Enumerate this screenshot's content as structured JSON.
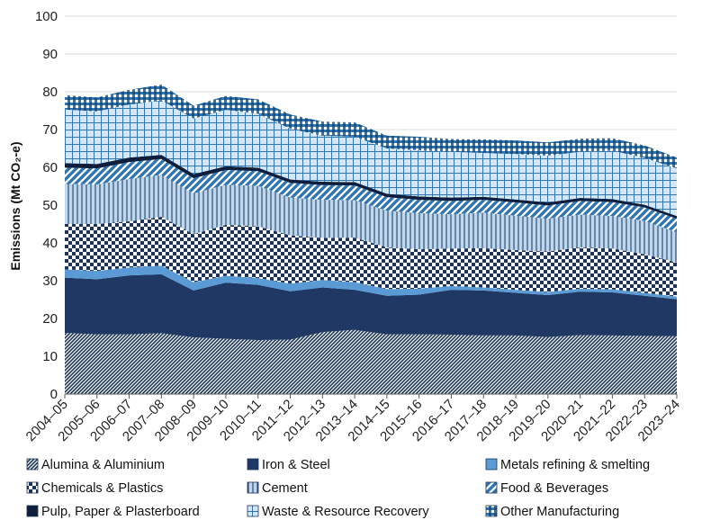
{
  "chart_data": {
    "type": "area",
    "stacked": true,
    "xlabel": "",
    "ylabel": "Emissions (Mt CO₂-e)",
    "ylim": [
      0,
      100
    ],
    "yticks": [
      "0",
      "10",
      "20",
      "30",
      "40",
      "50",
      "60",
      "70",
      "80",
      "90",
      "100"
    ],
    "grid": "horizontal",
    "legend_position": "bottom",
    "categories": [
      "2004–05",
      "2005–06",
      "2006–07",
      "2007–08",
      "2008–09",
      "2009–10",
      "2010–11",
      "2011–12",
      "2012–13",
      "2013–14",
      "2014–15",
      "2015–16",
      "2016–17",
      "2017–18",
      "2018–19",
      "2019–20",
      "2020–21",
      "2021–22",
      "2022–23",
      "2023–24"
    ],
    "series": [
      {
        "name": "Alumina & Aluminium",
        "color": "#1b3358",
        "pattern": "diag-hatch",
        "values": [
          16.2,
          15.8,
          15.8,
          16.1,
          15.0,
          14.6,
          14.3,
          14.4,
          16.4,
          17.0,
          15.8,
          15.8,
          15.7,
          15.5,
          15.5,
          15.1,
          15.6,
          15.5,
          15.4,
          15.3
        ]
      },
      {
        "name": "Iron & Steel",
        "color": "#1f3864",
        "pattern": "solid",
        "values": [
          14.6,
          14.6,
          15.6,
          15.6,
          12.4,
          14.9,
          14.6,
          12.8,
          11.8,
          10.6,
          10.2,
          10.5,
          11.9,
          11.9,
          11.3,
          11.1,
          11.5,
          11.4,
          10.6,
          9.8
        ]
      },
      {
        "name": "Metals refining & smelting",
        "color": "#5b9bd5",
        "pattern": "solid",
        "values": [
          2.2,
          2.2,
          2.1,
          2.3,
          2.2,
          1.8,
          1.8,
          2.0,
          2.0,
          2.0,
          1.8,
          1.6,
          1.0,
          0.8,
          0.8,
          0.8,
          0.8,
          0.8,
          0.8,
          0.7
        ]
      },
      {
        "name": "Chemicals & Plastics",
        "color": "#1b3358",
        "pattern": "checker",
        "values": [
          12.0,
          12.4,
          12.2,
          12.9,
          12.7,
          13.5,
          13.7,
          12.8,
          11.1,
          11.8,
          11.0,
          10.4,
          9.9,
          10.4,
          10.5,
          10.7,
          10.9,
          10.8,
          10.2,
          9.0
        ]
      },
      {
        "name": "Cement",
        "color": "#bdd7ee",
        "pattern": "vertical-lines",
        "values": [
          10.6,
          10.5,
          11.2,
          11.1,
          10.8,
          10.6,
          10.7,
          10.0,
          10.1,
          9.9,
          9.7,
          9.6,
          9.1,
          9.4,
          9.1,
          8.7,
          8.7,
          8.6,
          8.8,
          8.0
        ]
      },
      {
        "name": "Food & Beverages",
        "color": "#2e75b6",
        "pattern": "diag-stripe",
        "values": [
          4.3,
          4.2,
          4.5,
          4.2,
          4.0,
          3.9,
          3.9,
          3.9,
          3.9,
          3.9,
          3.6,
          3.5,
          3.5,
          3.4,
          3.5,
          3.5,
          3.6,
          3.7,
          3.6,
          3.6
        ]
      },
      {
        "name": "Pulp, Paper & Plasterboard",
        "color": "#0d1f3c",
        "pattern": "solid",
        "values": [
          1.2,
          1.2,
          1.2,
          1.1,
          1.1,
          1.0,
          0.9,
          0.9,
          0.9,
          0.9,
          0.9,
          0.9,
          0.9,
          0.8,
          0.8,
          0.8,
          0.8,
          0.8,
          0.7,
          0.7
        ]
      },
      {
        "name": "Waste & Resource Recovery",
        "color": "#c7dcf0",
        "pattern": "grid",
        "values": [
          14.2,
          13.9,
          14.0,
          14.4,
          14.7,
          14.9,
          14.3,
          13.4,
          12.2,
          12.0,
          12.0,
          12.2,
          12.1,
          11.6,
          12.0,
          12.4,
          12.2,
          12.8,
          12.4,
          12.6
        ]
      },
      {
        "name": "Other Manufacturing",
        "color": "#2e75b6",
        "pattern": "dots",
        "values": [
          3.8,
          3.7,
          3.9,
          4.2,
          3.4,
          3.7,
          3.8,
          3.8,
          3.7,
          3.8,
          3.4,
          3.6,
          3.4,
          3.6,
          3.6,
          3.5,
          3.5,
          3.3,
          3.3,
          2.9
        ]
      }
    ]
  }
}
